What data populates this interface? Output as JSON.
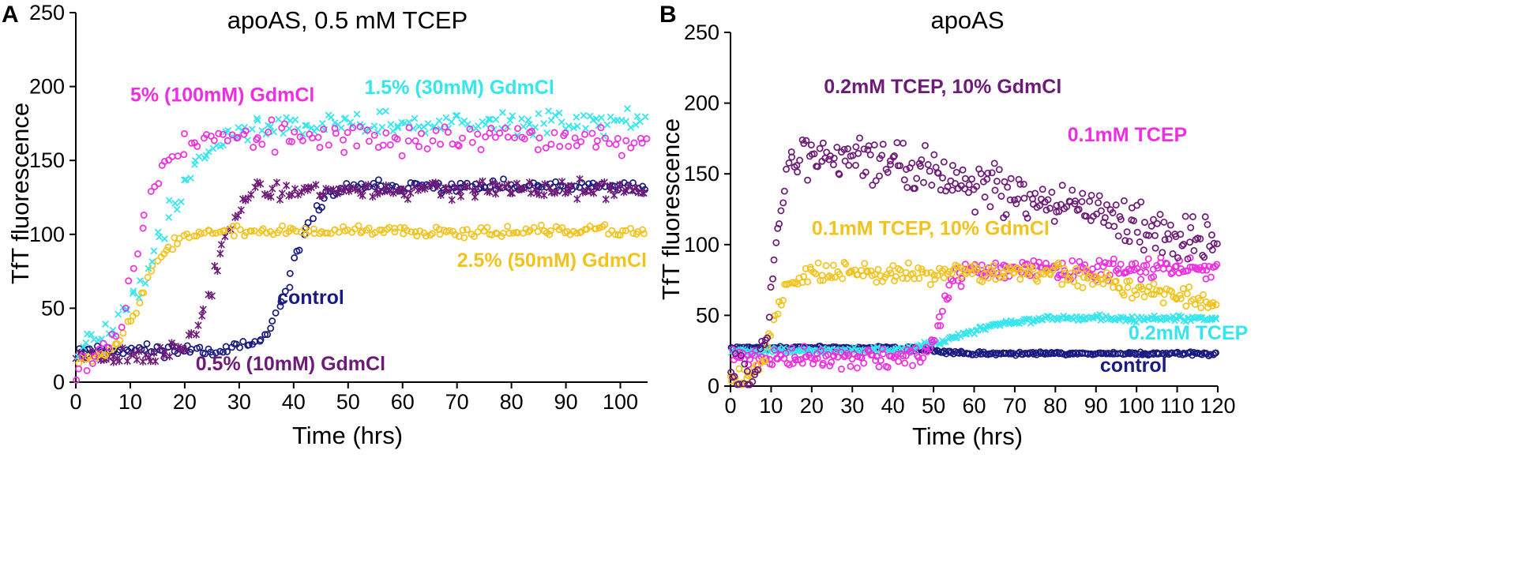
{
  "colors": {
    "navy": "#1a1a80",
    "purple": "#6d1a78",
    "magenta": "#ee2ee0",
    "cyan": "#36e6ee",
    "gold": "#f2c31e",
    "axis": "#000000"
  },
  "chart_data": [
    {
      "panel": "A",
      "type": "scatter",
      "title": "apoAS, 0.5 mM TCEP",
      "xlabel": "Time (hrs)",
      "ylabel": "TfT fluorescence",
      "xlim": [
        0,
        105
      ],
      "ylim": [
        0,
        250
      ],
      "x_ticks": [
        0,
        10,
        20,
        30,
        40,
        50,
        60,
        70,
        80,
        90,
        100
      ],
      "y_ticks": [
        0,
        50,
        100,
        150,
        200,
        250
      ],
      "series": [
        {
          "name": "control",
          "color": "#1a1a80",
          "marker": "circle",
          "baseline": 22,
          "plateau": 132,
          "midpoint": 40,
          "width": 2.2,
          "noise": 4,
          "end_x": 105,
          "spacing": 0.55,
          "seed": 11
        },
        {
          "name": "0.5% (10mM) GdmCl",
          "color": "#6d1a78",
          "marker": "star",
          "baseline": 18,
          "plateau": 130,
          "midpoint": 25.5,
          "width": 2.0,
          "noise": 6,
          "end_x": 105,
          "spacing": 0.55,
          "seed": 23
        },
        {
          "name": "2.5% (50mM) GdmCl",
          "color": "#f2c31e",
          "marker": "circle",
          "baseline": 15,
          "plateau": 102,
          "midpoint": 12,
          "width": 2.5,
          "noise": 3.5,
          "end_x": 105,
          "spacing": 0.55,
          "seed": 37
        },
        {
          "name": "1.5% (30mM) GdmCl",
          "color": "#36e6ee",
          "marker": "x",
          "baseline": 15,
          "plateau": 175,
          "midpoint": 15,
          "width": 4.5,
          "noise": 8,
          "end_x": 105,
          "spacing": 0.6,
          "seed": 41
        },
        {
          "name": "5% (100mM) GdmCl",
          "color": "#ee2ee0",
          "marker": "circle",
          "baseline": 10,
          "plateau": 165,
          "midpoint": 11,
          "width": 2.5,
          "noise": 10,
          "end_x": 105,
          "spacing": 0.75,
          "seed": 53
        }
      ],
      "annotations": [
        {
          "text": "5% (100mM) GdmCl",
          "color": "#ee2ee0",
          "x": 10,
          "y": 190
        },
        {
          "text": "1.5% (30mM) GdmCl",
          "color": "#36e6ee",
          "x": 53,
          "y": 195
        },
        {
          "text": "2.5% (50mM) GdmCl",
          "color": "#f2c31e",
          "x": 70,
          "y": 78
        },
        {
          "text": "control",
          "color": "#1a1a80",
          "x": 37,
          "y": 53
        },
        {
          "text": "0.5% (10mM) GdmCl",
          "color": "#6d1a78",
          "x": 22,
          "y": 8
        }
      ]
    },
    {
      "panel": "B",
      "type": "scatter",
      "title": "apoAS",
      "xlabel": "Time (hrs)",
      "ylabel": "TfT fluorescence",
      "xlim": [
        0,
        120
      ],
      "ylim": [
        0,
        250
      ],
      "x_ticks": [
        0,
        10,
        20,
        30,
        40,
        50,
        60,
        70,
        80,
        90,
        100,
        110,
        120
      ],
      "y_ticks": [
        0,
        50,
        100,
        150,
        200,
        250
      ],
      "series": [
        {
          "name": "control",
          "color": "#1a1a80",
          "marker": "circle",
          "baseline": 27,
          "plateau": 23,
          "midpoint": 50,
          "width": 3,
          "noise": 1.2,
          "end_x": 120,
          "spacing": 0.45,
          "seed": 61
        },
        {
          "name": "0.2mM TCEP",
          "color": "#36e6ee",
          "marker": "x",
          "baseline": 25,
          "plateau": 48,
          "midpoint": 57,
          "width": 6,
          "noise": 2,
          "end_x": 120,
          "spacing": 0.45,
          "seed": 67
        },
        {
          "name": "0.1mM TCEP",
          "color": "#ee2ee0",
          "marker": "circle",
          "baseline": 20,
          "plateau": 82,
          "midpoint": 52,
          "width": 1.6,
          "noise": 7,
          "end_x": 120,
          "spacing": 0.45,
          "seed": 71
        },
        {
          "name": "0.1mM TCEP, 10% GdmCl",
          "color": "#f2c31e",
          "marker": "circle",
          "baseline": 6,
          "plateau": 80,
          "midpoint": 10.5,
          "width": 1.8,
          "noise": 7,
          "end_x": 120,
          "spacing": 0.5,
          "seed": 79,
          "decay_after": 80,
          "decay_end": 58
        },
        {
          "name": "0.2mM TCEP, 10% GdmCl",
          "color": "#6d1a78",
          "marker": "circle",
          "baseline": 6,
          "plateau": 165,
          "midpoint": 11,
          "width": 1.6,
          "noise": 16,
          "end_x": 120,
          "spacing": 0.45,
          "seed": 83,
          "decay_after": 30,
          "decay_end": 98
        }
      ],
      "annotations": [
        {
          "text": "0.2mM TCEP, 10% GdmCl",
          "color": "#6d1a78",
          "x": 23,
          "y": 207
        },
        {
          "text": "0.1mM TCEP",
          "color": "#ee2ee0",
          "x": 83,
          "y": 173
        },
        {
          "text": "0.1mM TCEP, 10% GdmCl",
          "color": "#f2c31e",
          "x": 20,
          "y": 107
        },
        {
          "text": "0.2mM TCEP",
          "color": "#36e6ee",
          "x": 98,
          "y": 33
        },
        {
          "text": "control",
          "color": "#1a1a80",
          "x": 91,
          "y": 10
        }
      ]
    }
  ]
}
